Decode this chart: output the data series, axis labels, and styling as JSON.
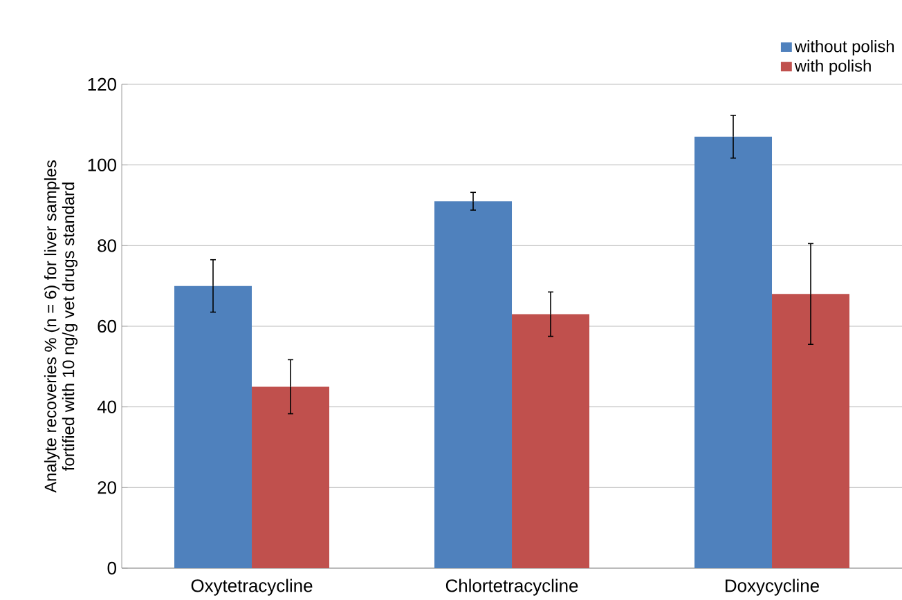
{
  "chart_data": {
    "type": "bar",
    "ylabel": "Analyte recoveries % (n = 6) for liver samples fortified with 10 ng/g vet drugs standard",
    "categories": [
      "Oxytetracycline",
      "Chlortetracycline",
      "Doxycycline"
    ],
    "series": [
      {
        "name": "without polish",
        "color": "#4f81bd",
        "values": [
          70,
          91,
          107
        ],
        "errors": [
          6.5,
          2.2,
          5.3
        ]
      },
      {
        "name": "with polish",
        "color": "#c0504d",
        "values": [
          45,
          63,
          68
        ],
        "errors": [
          6.7,
          5.5,
          12.5
        ]
      }
    ],
    "ylim": [
      0,
      120
    ],
    "yticks": [
      0,
      20,
      40,
      60,
      80,
      100,
      120
    ],
    "grid": "y",
    "legend": "top right"
  }
}
